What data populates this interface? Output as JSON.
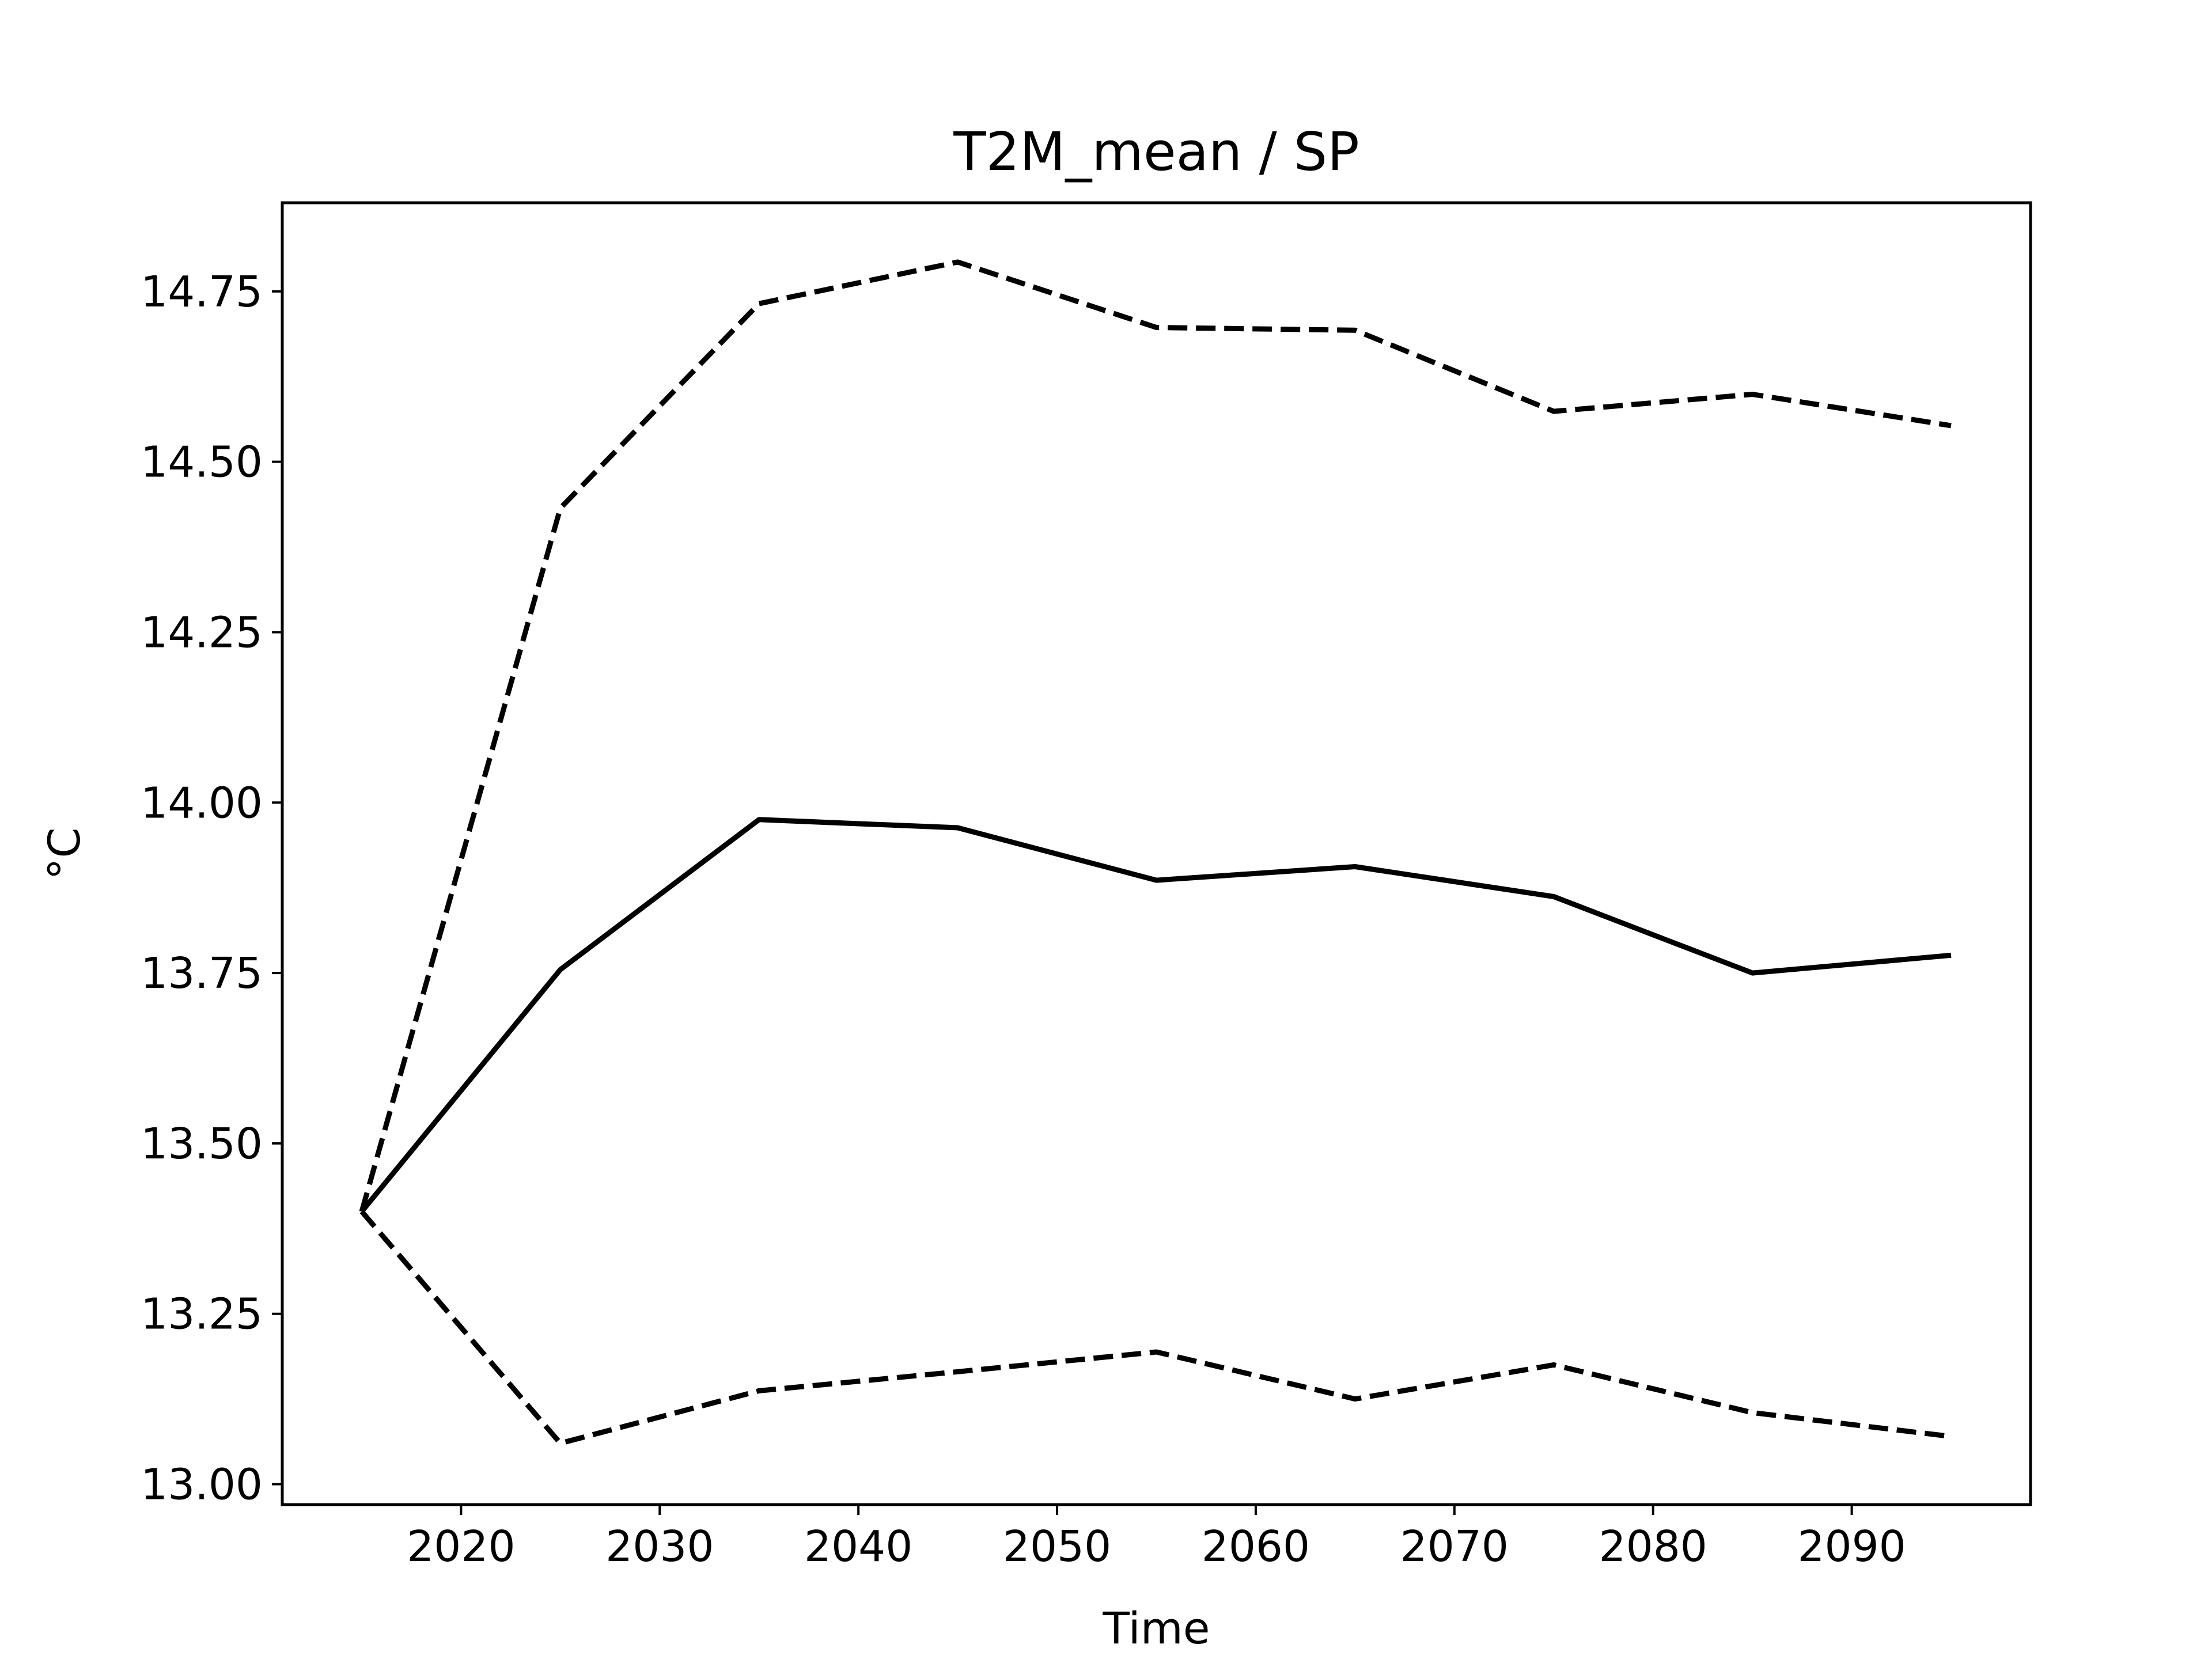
{
  "chart_data": {
    "type": "line",
    "title": "T2M_mean / SP",
    "xlabel": "Time",
    "ylabel": "°C",
    "xlim": [
      2011,
      2099
    ],
    "ylim": [
      12.97,
      14.88
    ],
    "xticks": [
      2020,
      2030,
      2040,
      2050,
      2060,
      2070,
      2080,
      2090
    ],
    "yticks": [
      13.0,
      13.25,
      13.5,
      13.75,
      14.0,
      14.25,
      14.5,
      14.75
    ],
    "ytick_labels": [
      "13.00",
      "13.25",
      "13.50",
      "13.75",
      "14.00",
      "14.25",
      "14.50",
      "14.75"
    ],
    "grid": false,
    "x": [
      2015,
      2025,
      2035,
      2045,
      2055,
      2065,
      2075,
      2085,
      2095
    ],
    "series": [
      {
        "style": "solid",
        "color": "#000000",
        "values": [
          13.4,
          13.755,
          13.975,
          13.963,
          13.886,
          13.906,
          13.862,
          13.75,
          13.776
        ]
      },
      {
        "style": "dashed",
        "color": "#000000",
        "values": [
          13.4,
          14.432,
          14.732,
          14.793,
          14.697,
          14.693,
          14.574,
          14.599,
          14.553
        ]
      },
      {
        "style": "dashed",
        "color": "#000000",
        "values": [
          13.4,
          13.06,
          13.137,
          13.165,
          13.194,
          13.125,
          13.175,
          13.105,
          13.07
        ]
      }
    ]
  }
}
